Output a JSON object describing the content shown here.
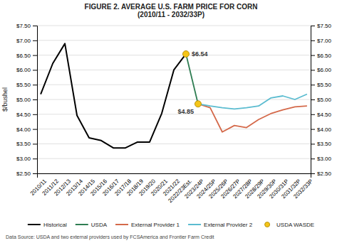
{
  "chart_data": {
    "type": "line",
    "title": "FIGURE 2. AVERAGE U.S. FARM PRICE FOR CORN\n(2010/11 - 2032/33P)",
    "y_label": "$/bushel",
    "source": "Data Source: USDA and two external providers used by FCSAmerica and Frontier Farm Credit",
    "categories": [
      "2010/11",
      "2011/12",
      "2012/13",
      "2013/14",
      "2014/15",
      "2015/16",
      "2016/17",
      "2017/18",
      "2018/19",
      "2019/20",
      "2020/21",
      "2021/22",
      "2022/23Est.",
      "2023/24P",
      "2024/25P",
      "2025/26P",
      "2026/27P",
      "2027/28P",
      "2028/29P",
      "2029/30P",
      "2030/31P",
      "2031/32P",
      "2032/33P"
    ],
    "series": [
      {
        "name": "Historical",
        "type": "line",
        "color": "#000000",
        "values": [
          5.18,
          6.22,
          6.89,
          4.46,
          3.7,
          3.61,
          3.36,
          3.36,
          3.56,
          3.56,
          4.53,
          6.0,
          6.54,
          null,
          null,
          null,
          null,
          null,
          null,
          null,
          null,
          null,
          null
        ]
      },
      {
        "name": "USDA",
        "type": "line",
        "color": "#2e7d52",
        "values": [
          null,
          null,
          null,
          null,
          null,
          null,
          null,
          null,
          null,
          null,
          null,
          null,
          6.54,
          4.85,
          null,
          null,
          null,
          null,
          null,
          null,
          null,
          null,
          null
        ]
      },
      {
        "name": "External Provider 1",
        "type": "line",
        "color": "#d4694a",
        "values": [
          null,
          null,
          null,
          null,
          null,
          null,
          null,
          null,
          null,
          null,
          null,
          null,
          null,
          4.85,
          4.72,
          3.9,
          4.12,
          4.05,
          4.32,
          4.52,
          4.65,
          4.75,
          4.78
        ]
      },
      {
        "name": "External Provider 2",
        "type": "line",
        "color": "#5bbcd0",
        "values": [
          null,
          null,
          null,
          null,
          null,
          null,
          null,
          null,
          null,
          null,
          null,
          null,
          null,
          4.85,
          4.78,
          4.72,
          4.68,
          4.72,
          4.78,
          5.05,
          5.12,
          5.0,
          5.18
        ]
      },
      {
        "name": "USDA WASDE",
        "type": "scatter",
        "marker": "circle",
        "color": "#f5c518",
        "values": [
          null,
          null,
          null,
          null,
          null,
          null,
          null,
          null,
          null,
          null,
          null,
          null,
          6.54,
          4.85,
          null,
          null,
          null,
          null,
          null,
          null,
          null,
          null,
          null
        ]
      }
    ],
    "annotations": [
      {
        "text": "$6.54",
        "x": "2022/23Est.",
        "y": 6.54
      },
      {
        "text": "$4.85",
        "x": "2023/24P",
        "y": 4.85
      }
    ],
    "ylim": [
      2.5,
      7.5
    ],
    "yticks": [
      {
        "value": 2.5,
        "label": "$2.50"
      },
      {
        "value": 3.0,
        "label": "$3.00"
      },
      {
        "value": 3.5,
        "label": "$3.50"
      },
      {
        "value": 4.0,
        "label": "$4.00"
      },
      {
        "value": 4.5,
        "label": "$4.50"
      },
      {
        "value": 5.0,
        "label": "$5.00"
      },
      {
        "value": 5.5,
        "label": "$5.50"
      },
      {
        "value": 6.0,
        "label": "$6.00"
      },
      {
        "value": 6.5,
        "label": "$6.50"
      },
      {
        "value": 7.0,
        "label": "$7.00"
      },
      {
        "value": 7.5,
        "label": "$7.50"
      }
    ],
    "y2lim": [
      2.5,
      7.5
    ],
    "y2ticks": [
      {
        "value": 2.5,
        "label": "$2.50"
      },
      {
        "value": 3.0,
        "label": "$3.00"
      },
      {
        "value": 3.5,
        "label": "$3.50"
      },
      {
        "value": 4.0,
        "label": "$4.00"
      },
      {
        "value": 4.5,
        "label": "$4.50"
      },
      {
        "value": 5.0,
        "label": "$5.00"
      },
      {
        "value": 5.5,
        "label": "$5.50"
      },
      {
        "value": 6.0,
        "label": "$6.00"
      },
      {
        "value": 6.5,
        "label": "$6.50"
      },
      {
        "value": 7.0,
        "label": "$7.00"
      },
      {
        "value": 7.5,
        "label": "$7.50"
      }
    ],
    "grid": true
  }
}
